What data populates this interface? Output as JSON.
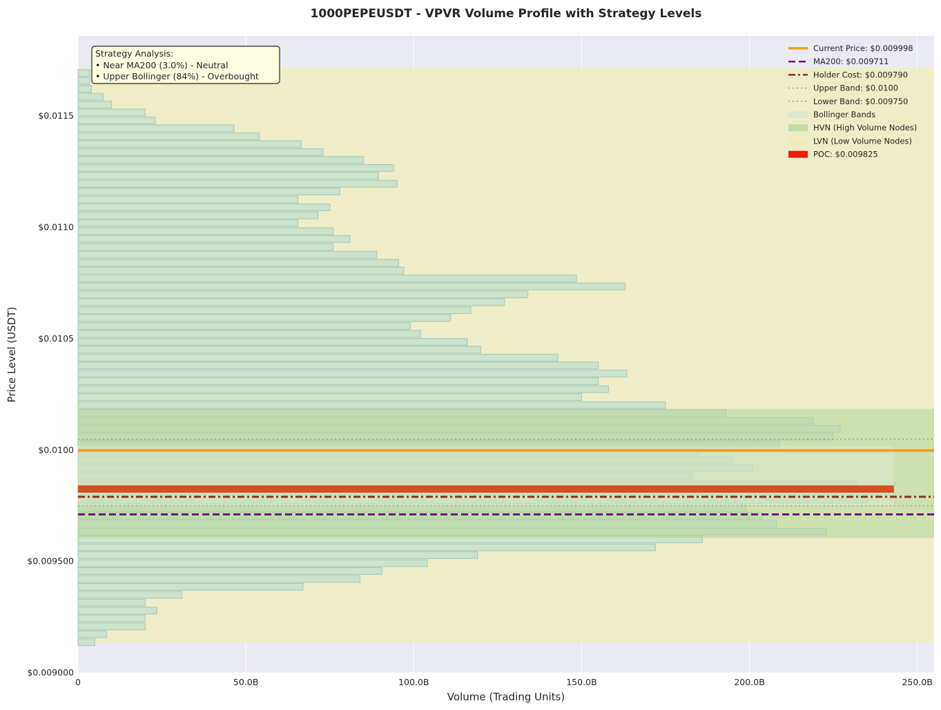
{
  "chart_data": {
    "type": "bar",
    "orientation": "horizontal",
    "title": "1000PEPEUSDT - VPVR Volume Profile with Strategy Levels",
    "xlabel": "Volume (Trading Units)",
    "ylabel": "Price Level (USDT)",
    "xlim": [
      0,
      255
    ],
    "ylim": [
      0.009,
      0.01186
    ],
    "x_ticks": [
      0,
      50,
      100,
      150,
      200,
      250
    ],
    "x_tick_labels": [
      "0",
      "50.0B",
      "100.0B",
      "150.0B",
      "200.0B",
      "250.0B"
    ],
    "y_ticks": [
      0.009,
      0.0095,
      0.01,
      0.0105,
      0.011,
      0.0115
    ],
    "y_tick_labels": [
      "$0.009000",
      "$0.009500",
      "$0.0100",
      "$0.0105",
      "$0.0110",
      "$0.0115"
    ],
    "grid": true,
    "legend_position": "top-right",
    "bin_height": 3.55e-05,
    "bins": {
      "price": [
        0.009137,
        0.009173,
        0.009208,
        0.009244,
        0.009279,
        0.009315,
        0.00935,
        0.009386,
        0.009421,
        0.009457,
        0.009492,
        0.009528,
        0.009563,
        0.009599,
        0.009634,
        0.00967,
        0.009705,
        0.009741,
        0.009776,
        0.009812,
        0.009847,
        0.009883,
        0.009918,
        0.009954,
        0.009989,
        0.010025,
        0.01006,
        0.010096,
        0.010131,
        0.010167,
        0.010202,
        0.010238,
        0.010273,
        0.010309,
        0.010344,
        0.01038,
        0.010415,
        0.010451,
        0.010486,
        0.010522,
        0.010557,
        0.010593,
        0.010628,
        0.010664,
        0.010699,
        0.010735,
        0.01077,
        0.010806,
        0.010841,
        0.010877,
        0.010912,
        0.010948,
        0.010983,
        0.011019,
        0.011054,
        0.01109,
        0.011125,
        0.011161,
        0.011196,
        0.011232,
        0.011267,
        0.011303,
        0.011338,
        0.011374,
        0.011409,
        0.011445,
        0.01148,
        0.011516,
        0.011551,
        0.011587,
        0.011622,
        0.011658,
        0.011693
      ],
      "volume": [
        5,
        8.5,
        20,
        20,
        23.5,
        20,
        31,
        67,
        84,
        90.5,
        104,
        119,
        172,
        186,
        223,
        208,
        204,
        199,
        235,
        243,
        232,
        183,
        201,
        195,
        185,
        209,
        225,
        227,
        219,
        193,
        175,
        150,
        158,
        155,
        163.5,
        155,
        143,
        120,
        116,
        102,
        99,
        111,
        117,
        127,
        134,
        163,
        148.5,
        97,
        95.5,
        89,
        76,
        81,
        76,
        65.5,
        71.5,
        75,
        65.5,
        78,
        95,
        89.5,
        94,
        85,
        73,
        66.5,
        54,
        46.5,
        23,
        20,
        10,
        7.5,
        4,
        3.5,
        3.5
      ]
    },
    "lvn_band": [
      0.009135,
      0.011715
    ],
    "hvn_band": [
      0.009605,
      0.010185
    ],
    "bollinger_band": [
      0.00975,
      0.01
    ],
    "poc": {
      "price": 0.009825,
      "volume": 243
    },
    "lines": [
      {
        "name": "current-price",
        "price": 0.009998,
        "color": "#f59f12",
        "style": "solid"
      },
      {
        "name": "ma200",
        "price": 0.009711,
        "color": "#6a1a7a",
        "style": "dashed"
      },
      {
        "name": "holder-cost",
        "price": 0.00979,
        "color": "#8b3020",
        "style": "dashdot"
      },
      {
        "name": "upper-band",
        "price": 0.01,
        "color": "#8f9f8f",
        "style": "dotted",
        "offset": 4.9e-05
      },
      {
        "name": "lower-band",
        "price": 0.00975,
        "color": "#8f9f8f",
        "style": "dotted"
      }
    ],
    "legend": [
      {
        "label": "Current Price: $0.009998",
        "kind": "line",
        "color": "#f59f12",
        "style": "solid"
      },
      {
        "label": "MA200: $0.009711",
        "kind": "line",
        "color": "#6a1a7a",
        "style": "dashed"
      },
      {
        "label": "Holder Cost: $0.009790",
        "kind": "line",
        "color": "#8b3020",
        "style": "dashdot"
      },
      {
        "label": "Upper Band: $0.0100",
        "kind": "line",
        "color": "#8f9f8f",
        "style": "dotted"
      },
      {
        "label": "Lower Band: $0.009750",
        "kind": "line",
        "color": "#8f9f8f",
        "style": "dotted"
      },
      {
        "label": "Bollinger Bands",
        "kind": "patch",
        "color": "#dfe5cf"
      },
      {
        "label": "HVN (High Volume Nodes)",
        "kind": "patch",
        "color": "#c5dca8"
      },
      {
        "label": "LVN (Low Volume Nodes)",
        "kind": "patch",
        "color": "#efeaba"
      },
      {
        "label": "POC: $0.009825",
        "kind": "patch",
        "color": "#f01a0a"
      }
    ],
    "annotation": {
      "lines": [
        "Strategy Analysis:",
        "• Near MA200 (3.0%) - Neutral",
        "• Upper Bollinger (84%) - Overbought"
      ]
    },
    "colors": {
      "plot_bg": "#eaeaf2",
      "lvn": "#eeedc8",
      "hvn": "#b7d59a",
      "bollinger": "#dfe8d6",
      "bar_fill": "#cce3cc",
      "bar_stroke": "#a9c4b9",
      "poc": "#d4501f"
    }
  }
}
